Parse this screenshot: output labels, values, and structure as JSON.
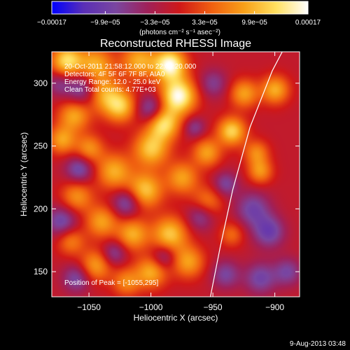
{
  "chart_data": {
    "type": "heatmap",
    "title": "Reconstructed RHESSI Image",
    "xlabel": "Heliocentric X (arcsec)",
    "ylabel": "Heliocentric Y (arcsec)",
    "xlim": [
      -1080,
      -880
    ],
    "ylim": [
      130,
      325
    ],
    "x_ticks": [
      -1050,
      -1000,
      -950,
      -900
    ],
    "x_tick_labels": [
      "−1050",
      "−1000",
      "−950",
      "−900"
    ],
    "y_ticks": [
      150,
      200,
      250,
      300
    ],
    "y_tick_labels": [
      "150",
      "200",
      "250",
      "300"
    ],
    "colorbar": {
      "min": -0.00017,
      "max": 0.00017,
      "ticks": [
        -0.00017,
        -9.9e-05,
        -3.3e-05,
        3.3e-05,
        9.9e-05,
        0.00017
      ],
      "tick_labels": [
        "−0.00017",
        "−9.9e−05",
        "−3.3e−05",
        "3.3e−05",
        "9.9e−05",
        "0.00017"
      ],
      "unit_label": "(photons cm⁻² s⁻¹ asec⁻²)"
    },
    "annotations": [
      "20-Oct-2011 21:58:12.000 to 22:01:20.000",
      "Detectors: 4F 5F 6F 7F 8F, AIA0",
      "Energy Range: 12.0 - 25.0 keV",
      "Clean     Total counts: 4.77E+03"
    ],
    "peak_label": "Position of Peak = [-1055,295]",
    "peak": [
      -1055,
      295
    ],
    "limb_curve": [
      [
        -952,
        130
      ],
      [
        -944,
        170
      ],
      [
        -934,
        215
      ],
      [
        -920,
        265
      ],
      [
        -902,
        310
      ],
      [
        -894,
        325
      ]
    ],
    "blobs": [
      [
        -1068,
        318,
        9,
        0.8
      ],
      [
        -1045,
        315,
        10,
        0.6
      ],
      [
        -1010,
        318,
        10,
        0.6
      ],
      [
        -985,
        315,
        9,
        1.0
      ],
      [
        -978,
        290,
        10,
        1.0
      ],
      [
        -990,
        268,
        9,
        0.8
      ],
      [
        -1000,
        248,
        10,
        0.7
      ],
      [
        -1040,
        292,
        10,
        0.6
      ],
      [
        -1062,
        275,
        9,
        0.6
      ],
      [
        -1072,
        255,
        8,
        0.55
      ],
      [
        -1025,
        282,
        9,
        0.7
      ],
      [
        -1050,
        248,
        8,
        0.5
      ],
      [
        -1030,
        230,
        10,
        0.6
      ],
      [
        -1060,
        210,
        9,
        0.5
      ],
      [
        -1005,
        215,
        10,
        0.7
      ],
      [
        -975,
        225,
        9,
        0.55
      ],
      [
        -955,
        245,
        8,
        0.55
      ],
      [
        -935,
        262,
        8,
        0.75
      ],
      [
        -925,
        292,
        8,
        0.55
      ],
      [
        -915,
        245,
        7,
        0.45
      ],
      [
        -1040,
        190,
        9,
        0.55
      ],
      [
        -1015,
        180,
        9,
        0.6
      ],
      [
        -985,
        180,
        10,
        0.7
      ],
      [
        -970,
        158,
        9,
        0.55
      ],
      [
        -1000,
        150,
        9,
        0.6
      ],
      [
        -1045,
        155,
        9,
        0.55
      ],
      [
        -1065,
        175,
        8,
        0.45
      ],
      [
        -955,
        205,
        9,
        0.45
      ],
      [
        -900,
        295,
        8,
        0.6
      ],
      [
        -912,
        230,
        7,
        0.5
      ],
      [
        -935,
        180,
        7,
        0.35
      ],
      [
        -1020,
        142,
        8,
        0.45
      ],
      [
        -1055,
        295,
        10,
        -0.55
      ],
      [
        -1000,
        280,
        8,
        -0.5
      ],
      [
        -1058,
        232,
        8,
        -0.5
      ],
      [
        -1020,
        205,
        8,
        -0.5
      ],
      [
        -960,
        195,
        8,
        -0.45
      ],
      [
        -1072,
        190,
        9,
        -0.5
      ],
      [
        -1060,
        145,
        8,
        -0.45
      ],
      [
        -1030,
        165,
        7,
        -0.4
      ],
      [
        -990,
        162,
        7,
        -0.4
      ],
      [
        -918,
        200,
        10,
        -0.45
      ],
      [
        -905,
        182,
        9,
        -0.5
      ],
      [
        -912,
        145,
        9,
        -0.45
      ],
      [
        -890,
        150,
        8,
        -0.4
      ],
      [
        -940,
        148,
        8,
        -0.4
      ],
      [
        -950,
        300,
        8,
        -0.35
      ],
      [
        -940,
        220,
        7,
        -0.4
      ],
      [
        -1075,
        300,
        7,
        -0.3
      ],
      [
        -965,
        265,
        6,
        -0.35
      ]
    ]
  },
  "footer": {
    "date": "9-Aug-2013 03:48"
  },
  "colors": {
    "background": "#000000",
    "text": "#ffffff",
    "colormap": [
      "#0000ff",
      "#5a2fb6",
      "#7a46a0",
      "#a02058",
      "#d01818",
      "#f06010",
      "#f8a018",
      "#ffe060",
      "#ffffff"
    ]
  }
}
